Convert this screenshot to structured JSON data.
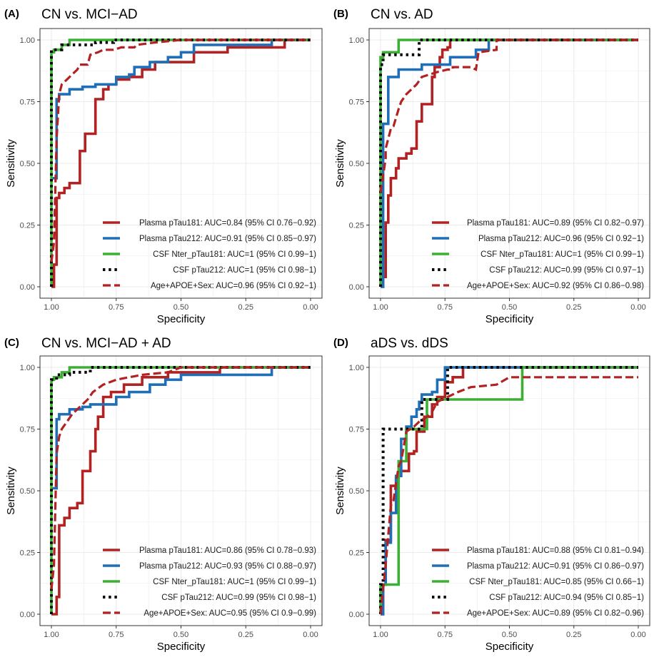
{
  "figure": {
    "colors": {
      "plasma181": "#b22222",
      "plasma212": "#1f6fb8",
      "csf181": "#3cb034",
      "csf212": "#000000",
      "clinical": "#b22222",
      "grid": "#ebebeb",
      "frame": "#333333"
    }
  },
  "chart_data": [
    {
      "type": "line",
      "panel_label": "(A)",
      "title": "CN vs. MCI−AD",
      "xlabel": "Specificity",
      "ylabel": "Sensitivity",
      "xlim": [
        1.0,
        0.0
      ],
      "ylim": [
        0.0,
        1.0
      ],
      "x_ticks": [
        "1.00",
        "0.75",
        "0.50",
        "0.25",
        "0.00"
      ],
      "y_ticks": [
        "0.00",
        "0.25",
        "0.50",
        "0.75",
        "1.00"
      ],
      "legend_position": "bottom-right",
      "series": [
        {
          "key": "plasma181",
          "name": "Plasma pTau181: AUC=0.84 (95% CI 0.76−0.92)",
          "style": "solid",
          "x": [
            1.0,
            0.99,
            0.99,
            0.98,
            0.98,
            0.97,
            0.97,
            0.95,
            0.95,
            0.93,
            0.93,
            0.89,
            0.89,
            0.87,
            0.87,
            0.83,
            0.83,
            0.8,
            0.8,
            0.78,
            0.78,
            0.75,
            0.75,
            0.7,
            0.7,
            0.65,
            0.65,
            0.6,
            0.6,
            0.45,
            0.45,
            0.32,
            0.32,
            0.1,
            0.1,
            0.0
          ],
          "y": [
            0.0,
            0.0,
            0.09,
            0.09,
            0.36,
            0.36,
            0.38,
            0.38,
            0.4,
            0.4,
            0.42,
            0.42,
            0.55,
            0.55,
            0.62,
            0.62,
            0.76,
            0.76,
            0.8,
            0.8,
            0.82,
            0.82,
            0.84,
            0.84,
            0.85,
            0.85,
            0.88,
            0.88,
            0.91,
            0.91,
            0.95,
            0.95,
            0.97,
            0.97,
            1.0,
            1.0
          ]
        },
        {
          "key": "plasma212",
          "name": "Plasma pTau212: AUC=0.91 (95% CI 0.85−0.97)",
          "style": "solid",
          "x": [
            1.0,
            0.98,
            0.98,
            0.97,
            0.97,
            0.93,
            0.93,
            0.88,
            0.88,
            0.83,
            0.83,
            0.75,
            0.75,
            0.7,
            0.7,
            0.68,
            0.68,
            0.62,
            0.62,
            0.55,
            0.55,
            0.5,
            0.5,
            0.45,
            0.45,
            0.15,
            0.15,
            0.0
          ],
          "y": [
            0.44,
            0.44,
            0.76,
            0.76,
            0.78,
            0.78,
            0.8,
            0.8,
            0.81,
            0.81,
            0.82,
            0.82,
            0.85,
            0.85,
            0.86,
            0.86,
            0.89,
            0.89,
            0.91,
            0.91,
            0.93,
            0.93,
            0.95,
            0.95,
            0.98,
            0.98,
            1.0,
            1.0
          ]
        },
        {
          "key": "csf181",
          "name": "CSF Nter_pTau181: AUC=1 (95% CI 0.99−1)",
          "style": "solid",
          "x": [
            1.0,
            1.0,
            0.99,
            0.99,
            0.96,
            0.96,
            0.93,
            0.93,
            0.0
          ],
          "y": [
            0.0,
            0.95,
            0.95,
            0.96,
            0.96,
            0.98,
            0.98,
            1.0,
            1.0
          ]
        },
        {
          "key": "csf212",
          "name": "CSF pTau212: AUC=1 (95% CI 0.98−1)",
          "style": "dotted",
          "x": [
            1.0,
            1.0,
            0.96,
            0.96,
            0.83,
            0.83,
            0.76,
            0.76,
            0.0
          ],
          "y": [
            0.0,
            0.96,
            0.96,
            0.98,
            0.98,
            0.99,
            0.99,
            1.0,
            1.0
          ]
        },
        {
          "key": "clinical",
          "name": "Age+APOE+Sex: AUC=0.96 (95% CI 0.92−1)",
          "style": "dashed",
          "x": [
            1.0,
            0.99,
            0.98,
            0.97,
            0.96,
            0.94,
            0.92,
            0.9,
            0.89,
            0.86,
            0.85,
            0.82,
            0.8,
            0.76,
            0.73,
            0.68,
            0.67,
            0.6,
            0.5,
            0.0
          ],
          "y": [
            0.1,
            0.18,
            0.6,
            0.78,
            0.82,
            0.84,
            0.86,
            0.88,
            0.9,
            0.9,
            0.94,
            0.95,
            0.96,
            0.96,
            0.97,
            0.97,
            0.98,
            0.99,
            1.0,
            1.0
          ]
        }
      ]
    },
    {
      "type": "line",
      "panel_label": "(B)",
      "title": "CN vs. AD",
      "xlabel": "Specificity",
      "ylabel": "Sensitivity",
      "xlim": [
        1.0,
        0.0
      ],
      "ylim": [
        0.0,
        1.0
      ],
      "x_ticks": [
        "1.00",
        "0.75",
        "0.50",
        "0.25",
        "0.00"
      ],
      "y_ticks": [
        "0.00",
        "0.25",
        "0.50",
        "0.75",
        "1.00"
      ],
      "legend_position": "bottom-right",
      "series": [
        {
          "key": "plasma181",
          "name": "Plasma pTau181: AUC=0.89 (95% CI 0.82−0.97)",
          "style": "solid",
          "x": [
            1.0,
            0.99,
            0.99,
            0.98,
            0.98,
            0.97,
            0.97,
            0.96,
            0.96,
            0.94,
            0.94,
            0.93,
            0.93,
            0.9,
            0.9,
            0.88,
            0.88,
            0.86,
            0.86,
            0.84,
            0.84,
            0.8,
            0.8,
            0.79,
            0.79,
            0.77,
            0.77,
            0.76,
            0.76,
            0.74,
            0.74,
            0.73,
            0.73,
            0.0
          ],
          "y": [
            0.0,
            0.0,
            0.04,
            0.04,
            0.26,
            0.26,
            0.37,
            0.37,
            0.44,
            0.44,
            0.48,
            0.48,
            0.52,
            0.52,
            0.54,
            0.54,
            0.56,
            0.56,
            0.67,
            0.67,
            0.74,
            0.74,
            0.85,
            0.85,
            0.89,
            0.89,
            0.93,
            0.93,
            0.96,
            0.96,
            0.97,
            0.97,
            1.0,
            1.0
          ]
        },
        {
          "key": "plasma212",
          "name": "Plasma pTau212: AUC=0.96 (95% CI 0.92−1)",
          "style": "solid",
          "x": [
            1.0,
            0.99,
            0.99,
            0.97,
            0.97,
            0.93,
            0.93,
            0.84,
            0.84,
            0.73,
            0.73,
            0.63,
            0.63,
            0.58,
            0.58,
            0.0
          ],
          "y": [
            0.0,
            0.0,
            0.66,
            0.66,
            0.85,
            0.85,
            0.88,
            0.88,
            0.9,
            0.9,
            0.93,
            0.93,
            0.96,
            0.96,
            1.0,
            1.0
          ]
        },
        {
          "key": "csf181",
          "name": "CSF Nter_pTau181: AUC=1 (95% CI 0.99−1)",
          "style": "solid",
          "x": [
            1.0,
            1.0,
            0.99,
            0.99,
            0.93,
            0.93,
            0.0
          ],
          "y": [
            0.0,
            0.93,
            0.93,
            0.95,
            0.95,
            1.0,
            1.0
          ]
        },
        {
          "key": "csf212",
          "name": "CSF pTau212: AUC=0.99 (95% CI 0.97−1)",
          "style": "dotted",
          "x": [
            1.0,
            1.0,
            0.99,
            0.99,
            0.85,
            0.85,
            0.0
          ],
          "y": [
            0.0,
            0.9,
            0.9,
            0.94,
            0.94,
            1.0,
            1.0
          ]
        },
        {
          "key": "clinical",
          "name": "Age+APOE+Sex: AUC=0.92 (95% CI 0.86−0.98)",
          "style": "dashed",
          "x": [
            1.0,
            0.98,
            0.98,
            0.96,
            0.95,
            0.93,
            0.92,
            0.9,
            0.88,
            0.86,
            0.84,
            0.78,
            0.74,
            0.72,
            0.72,
            0.7,
            0.65,
            0.63,
            0.62,
            0.55,
            0.55,
            0.0
          ],
          "y": [
            0.38,
            0.52,
            0.56,
            0.64,
            0.65,
            0.72,
            0.75,
            0.78,
            0.8,
            0.82,
            0.85,
            0.87,
            0.88,
            0.88,
            0.89,
            0.89,
            0.89,
            0.88,
            0.95,
            0.96,
            1.0,
            1.0
          ]
        }
      ]
    },
    {
      "type": "line",
      "panel_label": "(C)",
      "title": "CN vs. MCI−AD + AD",
      "xlabel": "Specificity",
      "ylabel": "Sensitivity",
      "xlim": [
        1.0,
        0.0
      ],
      "ylim": [
        0.0,
        1.0
      ],
      "x_ticks": [
        "1.00",
        "0.75",
        "0.50",
        "0.25",
        "0.00"
      ],
      "y_ticks": [
        "0.00",
        "0.25",
        "0.50",
        "0.75",
        "1.00"
      ],
      "legend_position": "bottom-right",
      "series": [
        {
          "key": "plasma181",
          "name": "Plasma pTau181: AUC=0.86 (95% CI 0.78−0.93)",
          "style": "solid",
          "x": [
            1.0,
            0.98,
            0.98,
            0.97,
            0.97,
            0.95,
            0.95,
            0.93,
            0.93,
            0.9,
            0.9,
            0.88,
            0.88,
            0.85,
            0.85,
            0.83,
            0.83,
            0.82,
            0.82,
            0.8,
            0.8,
            0.77,
            0.77,
            0.72,
            0.72,
            0.65,
            0.65,
            0.55,
            0.55,
            0.35,
            0.35,
            0.0
          ],
          "y": [
            0.0,
            0.0,
            0.07,
            0.07,
            0.36,
            0.36,
            0.39,
            0.39,
            0.43,
            0.43,
            0.45,
            0.45,
            0.58,
            0.58,
            0.66,
            0.66,
            0.75,
            0.75,
            0.8,
            0.8,
            0.88,
            0.88,
            0.9,
            0.9,
            0.93,
            0.93,
            0.96,
            0.96,
            0.98,
            0.98,
            1.0,
            1.0
          ]
        },
        {
          "key": "plasma212",
          "name": "Plasma pTau212: AUC=0.93 (95% CI 0.88−0.97)",
          "style": "solid",
          "x": [
            1.0,
            0.98,
            0.98,
            0.97,
            0.97,
            0.93,
            0.93,
            0.88,
            0.88,
            0.85,
            0.85,
            0.75,
            0.75,
            0.7,
            0.7,
            0.62,
            0.62,
            0.56,
            0.56,
            0.5,
            0.5,
            0.15,
            0.15,
            0.0
          ],
          "y": [
            0.51,
            0.51,
            0.79,
            0.79,
            0.81,
            0.81,
            0.83,
            0.83,
            0.84,
            0.84,
            0.85,
            0.85,
            0.88,
            0.88,
            0.9,
            0.9,
            0.93,
            0.93,
            0.95,
            0.95,
            0.97,
            0.97,
            1.0,
            1.0
          ]
        },
        {
          "key": "csf181",
          "name": "CSF Nter_pTau181: AUC=1 (95% CI 0.99−1)",
          "style": "solid",
          "x": [
            1.0,
            1.0,
            0.99,
            0.99,
            0.96,
            0.96,
            0.93,
            0.93,
            0.0
          ],
          "y": [
            0.0,
            0.95,
            0.95,
            0.96,
            0.96,
            0.98,
            0.98,
            1.0,
            1.0
          ]
        },
        {
          "key": "csf212",
          "name": "CSF pTau212: AUC=0.99 (95% CI 0.98−1)",
          "style": "dotted",
          "x": [
            1.0,
            1.0,
            0.98,
            0.98,
            0.93,
            0.93,
            0.85,
            0.85,
            0.0
          ],
          "y": [
            0.0,
            0.95,
            0.95,
            0.97,
            0.97,
            0.98,
            0.98,
            1.0,
            1.0
          ]
        },
        {
          "key": "clinical",
          "name": "Age+APOE+Sex: AUC=0.95 (95% CI 0.9−0.99)",
          "style": "dashed",
          "x": [
            1.0,
            0.99,
            0.98,
            0.97,
            0.96,
            0.94,
            0.92,
            0.9,
            0.88,
            0.86,
            0.84,
            0.8,
            0.75,
            0.7,
            0.65,
            0.55,
            0.5,
            0.0
          ],
          "y": [
            0.1,
            0.2,
            0.65,
            0.72,
            0.75,
            0.78,
            0.81,
            0.83,
            0.85,
            0.87,
            0.9,
            0.93,
            0.95,
            0.96,
            0.97,
            0.98,
            1.0,
            1.0
          ]
        }
      ]
    },
    {
      "type": "line",
      "panel_label": "(D)",
      "title": "aDS vs. dDS",
      "xlabel": "Specificity",
      "ylabel": "Sensitivity",
      "xlim": [
        1.0,
        0.0
      ],
      "ylim": [
        0.0,
        1.0
      ],
      "x_ticks": [
        "1.00",
        "0.75",
        "0.50",
        "0.25",
        "0.00"
      ],
      "y_ticks": [
        "0.00",
        "0.25",
        "0.50",
        "0.75",
        "1.00"
      ],
      "legend_position": "bottom-right",
      "series": [
        {
          "key": "plasma181",
          "name": "Plasma pTau181: AUC=0.88 (95% CI 0.81−0.94)",
          "style": "solid",
          "x": [
            1.0,
            0.99,
            0.99,
            0.98,
            0.98,
            0.96,
            0.96,
            0.94,
            0.94,
            0.93,
            0.93,
            0.89,
            0.89,
            0.87,
            0.87,
            0.86,
            0.86,
            0.83,
            0.83,
            0.8,
            0.8,
            0.78,
            0.78,
            0.75,
            0.75,
            0.72,
            0.72,
            0.68,
            0.68,
            0.0
          ],
          "y": [
            0.0,
            0.0,
            0.12,
            0.12,
            0.3,
            0.3,
            0.52,
            0.52,
            0.55,
            0.55,
            0.58,
            0.58,
            0.65,
            0.65,
            0.66,
            0.66,
            0.74,
            0.74,
            0.8,
            0.8,
            0.85,
            0.85,
            0.88,
            0.88,
            0.94,
            0.94,
            0.96,
            0.96,
            1.0,
            1.0
          ]
        },
        {
          "key": "plasma212",
          "name": "Plasma pTau212: AUC=0.91 (95% CI 0.86−0.97)",
          "style": "solid",
          "x": [
            1.0,
            0.99,
            0.99,
            0.98,
            0.98,
            0.96,
            0.96,
            0.94,
            0.94,
            0.92,
            0.92,
            0.9,
            0.9,
            0.88,
            0.88,
            0.86,
            0.86,
            0.85,
            0.85,
            0.84,
            0.84,
            0.8,
            0.8,
            0.78,
            0.78,
            0.75,
            0.75,
            0.0
          ],
          "y": [
            0.0,
            0.0,
            0.12,
            0.12,
            0.29,
            0.29,
            0.41,
            0.41,
            0.56,
            0.56,
            0.71,
            0.71,
            0.76,
            0.76,
            0.8,
            0.8,
            0.83,
            0.83,
            0.86,
            0.86,
            0.89,
            0.89,
            0.9,
            0.9,
            0.95,
            0.95,
            1.0,
            1.0
          ]
        },
        {
          "key": "csf181",
          "name": "CSF Nter_pTau181: AUC=0.85 (95% CI 0.66−1)",
          "style": "solid",
          "x": [
            1.0,
            1.0,
            0.98,
            0.98,
            0.93,
            0.93,
            0.9,
            0.9,
            0.82,
            0.82,
            0.45,
            0.45,
            0.0
          ],
          "y": [
            0.0,
            0.12,
            0.12,
            0.12,
            0.12,
            0.62,
            0.62,
            0.75,
            0.75,
            0.87,
            0.87,
            1.0,
            1.0
          ]
        },
        {
          "key": "csf212",
          "name": "CSF pTau212: AUC=0.94 (95% CI 0.85−1)",
          "style": "dotted",
          "x": [
            1.0,
            1.0,
            0.99,
            0.99,
            0.84,
            0.84,
            0.74,
            0.74,
            0.0
          ],
          "y": [
            0.0,
            0.12,
            0.12,
            0.75,
            0.75,
            0.87,
            0.87,
            1.0,
            1.0
          ]
        },
        {
          "key": "clinical",
          "name": "Age+APOE+Sex: AUC=0.89 (95% CI 0.82−0.96)",
          "style": "dashed",
          "x": [
            1.0,
            0.98,
            0.96,
            0.95,
            0.93,
            0.92,
            0.9,
            0.87,
            0.85,
            0.82,
            0.8,
            0.78,
            0.74,
            0.7,
            0.65,
            0.55,
            0.5,
            0.4,
            0.0
          ],
          "y": [
            0.0,
            0.2,
            0.44,
            0.46,
            0.6,
            0.62,
            0.74,
            0.76,
            0.78,
            0.8,
            0.82,
            0.86,
            0.88,
            0.9,
            0.92,
            0.93,
            0.96,
            0.96,
            0.96
          ]
        }
      ]
    }
  ]
}
